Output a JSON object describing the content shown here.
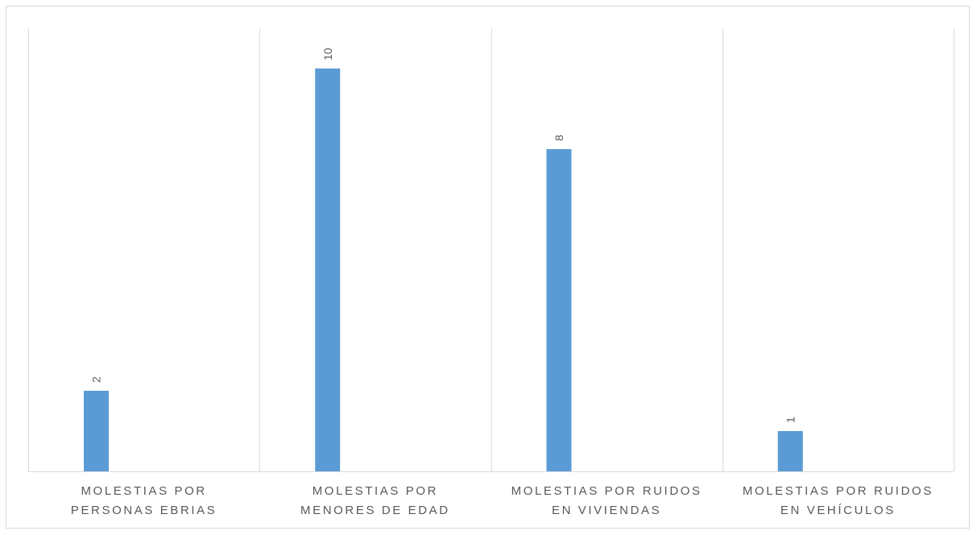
{
  "chart_data": {
    "type": "bar",
    "categories": [
      [
        "MOLESTIAS POR",
        "PERSONAS EBRIAS"
      ],
      [
        "MOLESTIAS POR",
        "MENORES DE EDAD"
      ],
      [
        "MOLESTIAS POR RUIDOS",
        "EN VIVIENDAS"
      ],
      [
        "MOLESTIAS POR RUIDOS",
        "EN VEHÍCULOS"
      ]
    ],
    "values": [
      2,
      10,
      8,
      1
    ],
    "data_labels": [
      "2",
      "10",
      "8",
      "1"
    ],
    "ylim": [
      0,
      11
    ],
    "grid": "vertical category separators",
    "legend": "none",
    "bar_color": "#5b9bd5",
    "axis_color": "#d9d9d9",
    "label_color": "#595959"
  }
}
